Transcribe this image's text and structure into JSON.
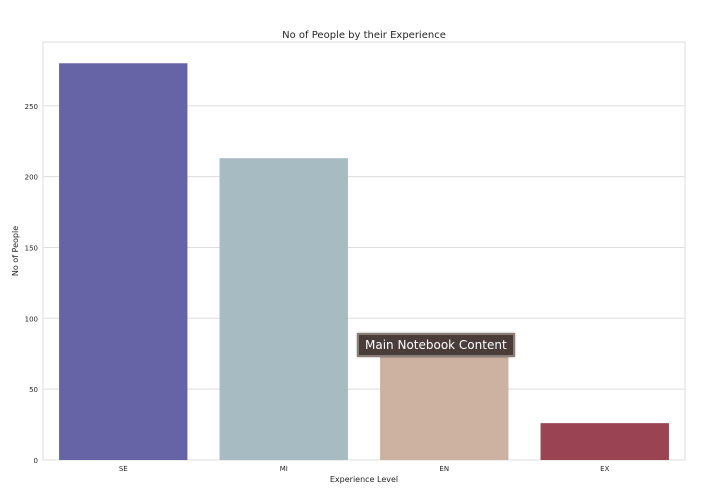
{
  "chart_data": {
    "type": "bar",
    "title": "No of People by their Experience",
    "xlabel": "Experience Level",
    "ylabel": "No of People",
    "categories": [
      "SE",
      "MI",
      "EN",
      "EX"
    ],
    "values": [
      280,
      213,
      88,
      26
    ],
    "colors": [
      "#6664a6",
      "#a7bbc2",
      "#cdb2a2",
      "#9a4352"
    ],
    "ylim": [
      0,
      295
    ],
    "yticks": [
      0,
      50,
      100,
      150,
      200,
      250
    ],
    "grid": true,
    "legend": "none"
  },
  "overlay": {
    "tooltip_text": "Main Notebook Content"
  }
}
